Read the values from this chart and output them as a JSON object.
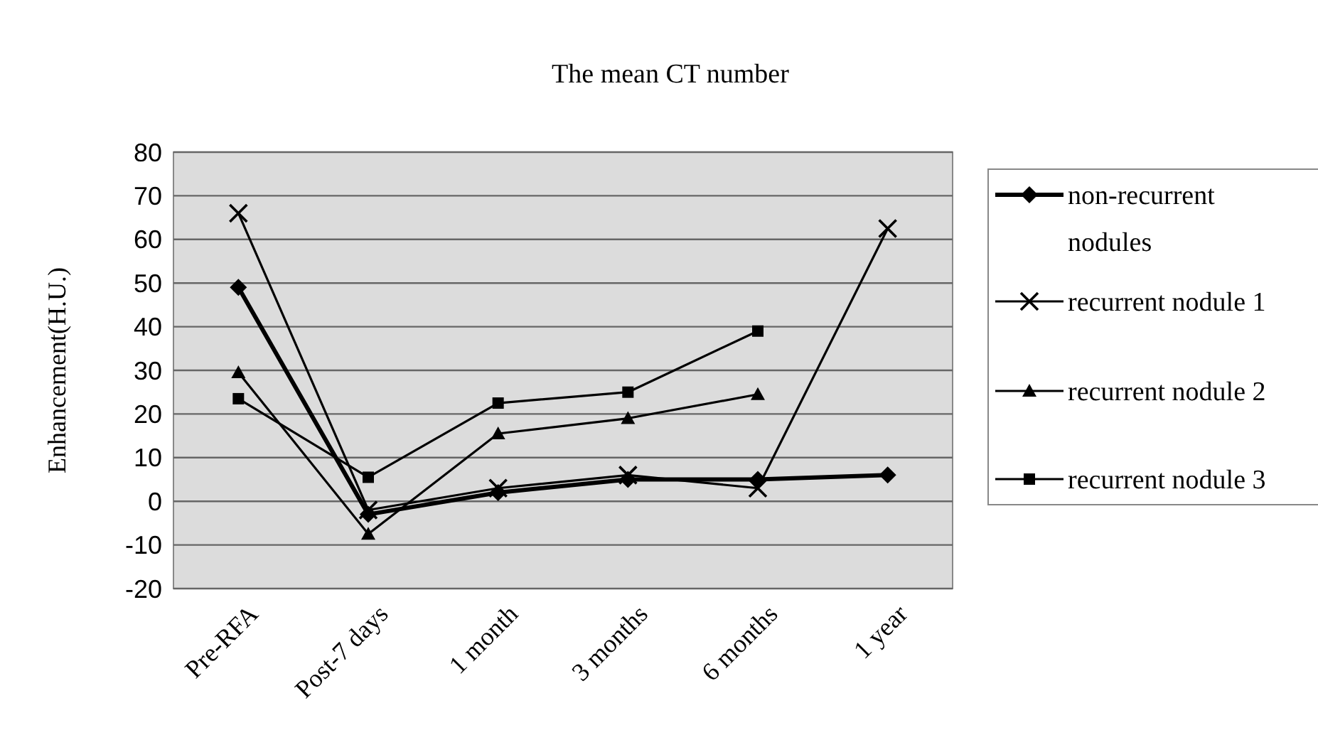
{
  "chart_data": {
    "type": "line",
    "title": "The mean CT number",
    "ylabel": "Enhancement(H.U.)",
    "categories": [
      "Pre-RFA",
      "Post-7 days",
      "1 month",
      "3 months",
      "6 months",
      "1 year"
    ],
    "series": [
      {
        "name": "non-recurrent nodules",
        "color": "#000000",
        "marker": "diamond",
        "values": [
          49,
          -3,
          2,
          5,
          5,
          6
        ]
      },
      {
        "name": "recurrent nodule 1",
        "color": "#000000",
        "marker": "cross",
        "values": [
          66,
          -2,
          3,
          6,
          3,
          62.5
        ]
      },
      {
        "name": "recurrent nodule 2",
        "color": "#000000",
        "marker": "triangle",
        "values": [
          29.5,
          -7.5,
          15.5,
          19,
          24.5,
          null
        ]
      },
      {
        "name": "recurrent nodule 3",
        "color": "#000000",
        "marker": "square",
        "values": [
          23.5,
          5.5,
          22.5,
          25,
          39,
          null
        ]
      }
    ],
    "ylim": [
      -20,
      80
    ],
    "yticks": [
      -20,
      -10,
      0,
      10,
      20,
      30,
      40,
      50,
      60,
      70,
      80
    ],
    "grid": "y",
    "legend": "right"
  }
}
